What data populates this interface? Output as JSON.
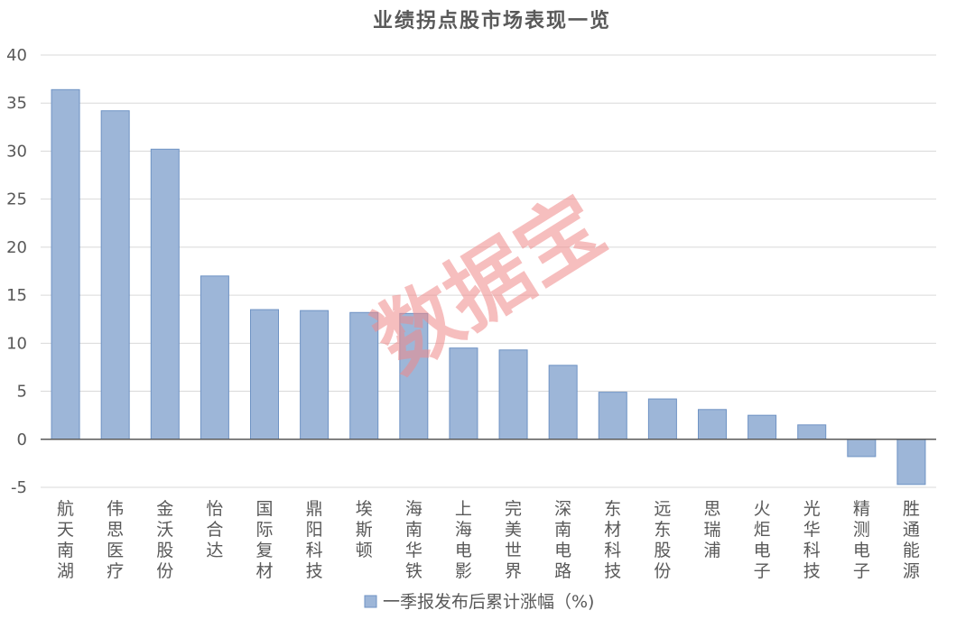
{
  "chart_data": {
    "type": "bar",
    "title": "业绩拐点股市场表现一览",
    "categories": [
      "航天南湖",
      "伟思医疗",
      "金沃股份",
      "怡合达",
      "国际复材",
      "鼎阳科技",
      "埃斯顿",
      "海南华铁",
      "上海电影",
      "完美世界",
      "深南电路",
      "东材科技",
      "远东股份",
      "思瑞浦",
      "火炬电子",
      "光华科技",
      "精测电子",
      "胜通能源"
    ],
    "series": [
      {
        "name": "一季报发布后累计涨幅（%)",
        "values": [
          36.4,
          34.2,
          30.2,
          17.0,
          13.5,
          13.4,
          13.2,
          13.1,
          9.5,
          9.3,
          7.7,
          4.9,
          4.2,
          3.1,
          2.5,
          1.5,
          -1.8,
          -4.7
        ]
      }
    ],
    "ylim": [
      -5,
      40
    ],
    "yticks": [
      40,
      35,
      30,
      25,
      20,
      15,
      10,
      5,
      0,
      -5
    ],
    "grid": true,
    "legend_position": "bottom",
    "colors": {
      "bar_fill": "#9db6d8",
      "bar_stroke": "#6f93c4",
      "grid": "#d9d9d9",
      "axis": "#595959"
    }
  },
  "watermark": "数据宝"
}
